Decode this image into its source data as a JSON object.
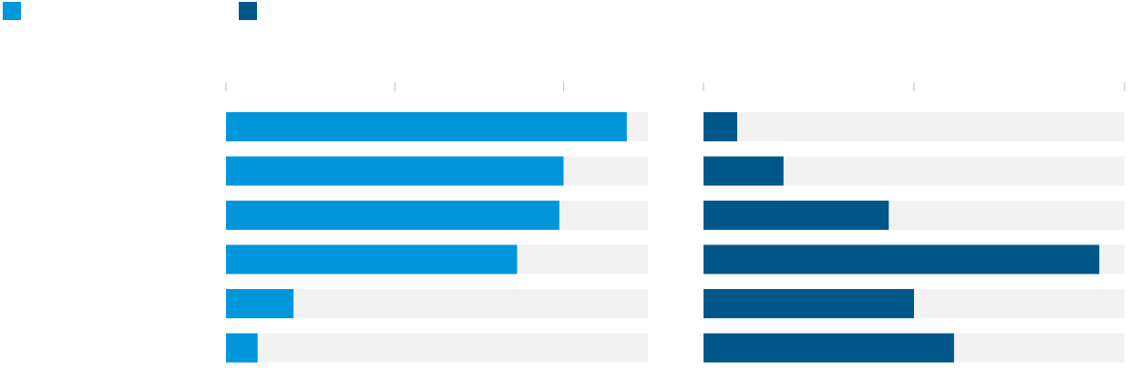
{
  "legend": {
    "items": [
      {
        "label": "",
        "color": "#0096dc"
      },
      {
        "label": "",
        "color": "#00578a"
      }
    ]
  },
  "chart_data": [
    {
      "type": "bar",
      "orientation": "horizontal",
      "series": [
        {
          "values": [
            95,
            80,
            79,
            69,
            16,
            7.5
          ],
          "color": "#0096dc"
        }
      ],
      "xlim": [
        0,
        100
      ],
      "tick_values": [
        0,
        40,
        80
      ],
      "track_color": "#f2f2f2"
    },
    {
      "type": "bar",
      "orientation": "horizontal",
      "series": [
        {
          "values": [
            8,
            19,
            44,
            94,
            50,
            59.5
          ],
          "color": "#00578a"
        }
      ],
      "xlim": [
        0,
        100
      ],
      "tick_values": [
        0,
        50,
        100
      ],
      "track_color": "#f2f2f2"
    }
  ]
}
